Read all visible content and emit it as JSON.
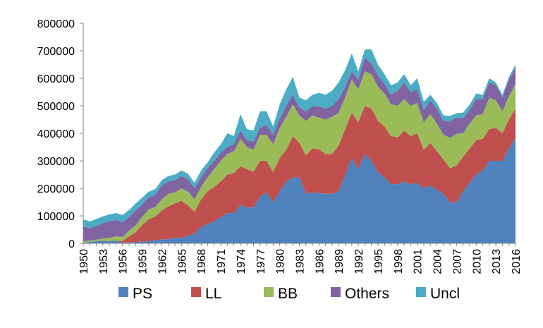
{
  "chart_data": {
    "type": "area",
    "stacked": true,
    "x": [
      1950,
      1951,
      1952,
      1953,
      1954,
      1955,
      1956,
      1957,
      1958,
      1959,
      1960,
      1961,
      1962,
      1963,
      1964,
      1965,
      1966,
      1967,
      1968,
      1969,
      1970,
      1971,
      1972,
      1973,
      1974,
      1975,
      1976,
      1977,
      1978,
      1979,
      1980,
      1981,
      1982,
      1983,
      1984,
      1985,
      1986,
      1987,
      1988,
      1989,
      1990,
      1991,
      1992,
      1993,
      1994,
      1995,
      1996,
      1997,
      1998,
      1999,
      2000,
      2001,
      2002,
      2003,
      2004,
      2005,
      2006,
      2007,
      2008,
      2009,
      2010,
      2011,
      2012,
      2013,
      2014,
      2015,
      2016
    ],
    "x_tick_labels": [
      "1950",
      "1953",
      "1956",
      "1959",
      "1962",
      "1965",
      "1968",
      "1971",
      "1974",
      "1977",
      "1980",
      "1983",
      "1986",
      "1989",
      "1992",
      "1995",
      "1998",
      "2001",
      "2004",
      "2007",
      "2010",
      "2013",
      "2016"
    ],
    "x_tick_values": [
      1950,
      1953,
      1956,
      1959,
      1962,
      1965,
      1968,
      1971,
      1974,
      1977,
      1980,
      1983,
      1986,
      1989,
      1992,
      1995,
      1998,
      2001,
      2004,
      2007,
      2010,
      2013,
      2016
    ],
    "ylim": [
      0,
      800000
    ],
    "y_ticks": [
      0,
      100000,
      200000,
      300000,
      400000,
      500000,
      600000,
      700000,
      800000
    ],
    "y_tick_labels": [
      "0",
      "100000",
      "200000",
      "300000",
      "400000",
      "500000",
      "600000",
      "700000",
      "800000"
    ],
    "legend_position": "bottom",
    "grid": false,
    "series": [
      {
        "name": "PS",
        "color": "#4f81bd",
        "values": [
          2000,
          5000,
          8000,
          10000,
          8000,
          10000,
          3000,
          4000,
          5000,
          6000,
          8000,
          12000,
          15000,
          15000,
          20000,
          20000,
          28000,
          35000,
          60000,
          70000,
          80000,
          95000,
          110000,
          110000,
          140000,
          130000,
          130000,
          170000,
          185000,
          150000,
          190000,
          225000,
          240000,
          240000,
          180000,
          185000,
          182000,
          180000,
          180000,
          190000,
          250000,
          310000,
          270000,
          325000,
          300000,
          260000,
          240000,
          215000,
          215000,
          225000,
          215000,
          220000,
          200000,
          210000,
          195000,
          180000,
          148000,
          148000,
          190000,
          220000,
          250000,
          265000,
          300000,
          300000,
          300000,
          345000,
          385000
        ]
      },
      {
        "name": "LL",
        "color": "#c0504d",
        "values": [
          0,
          0,
          0,
          0,
          0,
          0,
          5000,
          22000,
          35000,
          60000,
          80000,
          85000,
          105000,
          120000,
          125000,
          135000,
          110000,
          80000,
          100000,
          120000,
          125000,
          130000,
          140000,
          145000,
          140000,
          140000,
          130000,
          130000,
          115000,
          110000,
          120000,
          115000,
          150000,
          125000,
          140000,
          160000,
          160000,
          145000,
          145000,
          165000,
          165000,
          165000,
          170000,
          175000,
          190000,
          185000,
          185000,
          175000,
          170000,
          185000,
          175000,
          180000,
          140000,
          155000,
          140000,
          125000,
          125000,
          135000,
          125000,
          125000,
          125000,
          115000,
          115000,
          120000,
          100000,
          105000,
          105000
        ]
      },
      {
        "name": "BB",
        "color": "#9bbb59",
        "values": [
          5000,
          5000,
          5000,
          8000,
          12000,
          15000,
          15000,
          20000,
          25000,
          30000,
          35000,
          35000,
          40000,
          45000,
          40000,
          45000,
          50000,
          45000,
          45000,
          50000,
          65000,
          75000,
          75000,
          80000,
          100000,
          80000,
          80000,
          95000,
          95000,
          100000,
          110000,
          120000,
          115000,
          100000,
          125000,
          120000,
          115000,
          125000,
          135000,
          120000,
          115000,
          120000,
          120000,
          125000,
          125000,
          125000,
          120000,
          115000,
          115000,
          115000,
          110000,
          110000,
          100000,
          105000,
          100000,
          90000,
          110000,
          115000,
          85000,
          90000,
          90000,
          90000,
          115000,
          100000,
          80000,
          85000,
          90000
        ]
      },
      {
        "name": "Others",
        "color": "#8064a2",
        "values": [
          55000,
          45000,
          50000,
          55000,
          60000,
          60000,
          55000,
          50000,
          55000,
          45000,
          45000,
          45000,
          50000,
          45000,
          45000,
          45000,
          45000,
          40000,
          35000,
          35000,
          30000,
          30000,
          25000,
          25000,
          30000,
          25000,
          30000,
          25000,
          35000,
          35000,
          35000,
          40000,
          35000,
          30000,
          35000,
          35000,
          40000,
          40000,
          40000,
          50000,
          40000,
          30000,
          35000,
          50000,
          40000,
          40000,
          35000,
          35000,
          55000,
          60000,
          50000,
          50000,
          45000,
          50000,
          55000,
          50000,
          60000,
          60000,
          55000,
          50000,
          60000,
          55000,
          55000,
          55000,
          50000,
          60000,
          60000
        ]
      },
      {
        "name": "Uncl",
        "color": "#4bacc6",
        "values": [
          25000,
          25000,
          25000,
          25000,
          25000,
          25000,
          25000,
          25000,
          25000,
          25000,
          20000,
          20000,
          20000,
          20000,
          20000,
          20000,
          20000,
          20000,
          25000,
          20000,
          30000,
          30000,
          50000,
          30000,
          60000,
          40000,
          40000,
          60000,
          50000,
          30000,
          50000,
          60000,
          65000,
          35000,
          40000,
          40000,
          50000,
          50000,
          55000,
          60000,
          60000,
          65000,
          30000,
          30000,
          50000,
          40000,
          35000,
          35000,
          30000,
          30000,
          25000,
          40000,
          30000,
          20000,
          20000,
          20000,
          20000,
          15000,
          20000,
          20000,
          20000,
          15000,
          15000,
          10000,
          10000,
          10000,
          10000
        ]
      }
    ]
  }
}
